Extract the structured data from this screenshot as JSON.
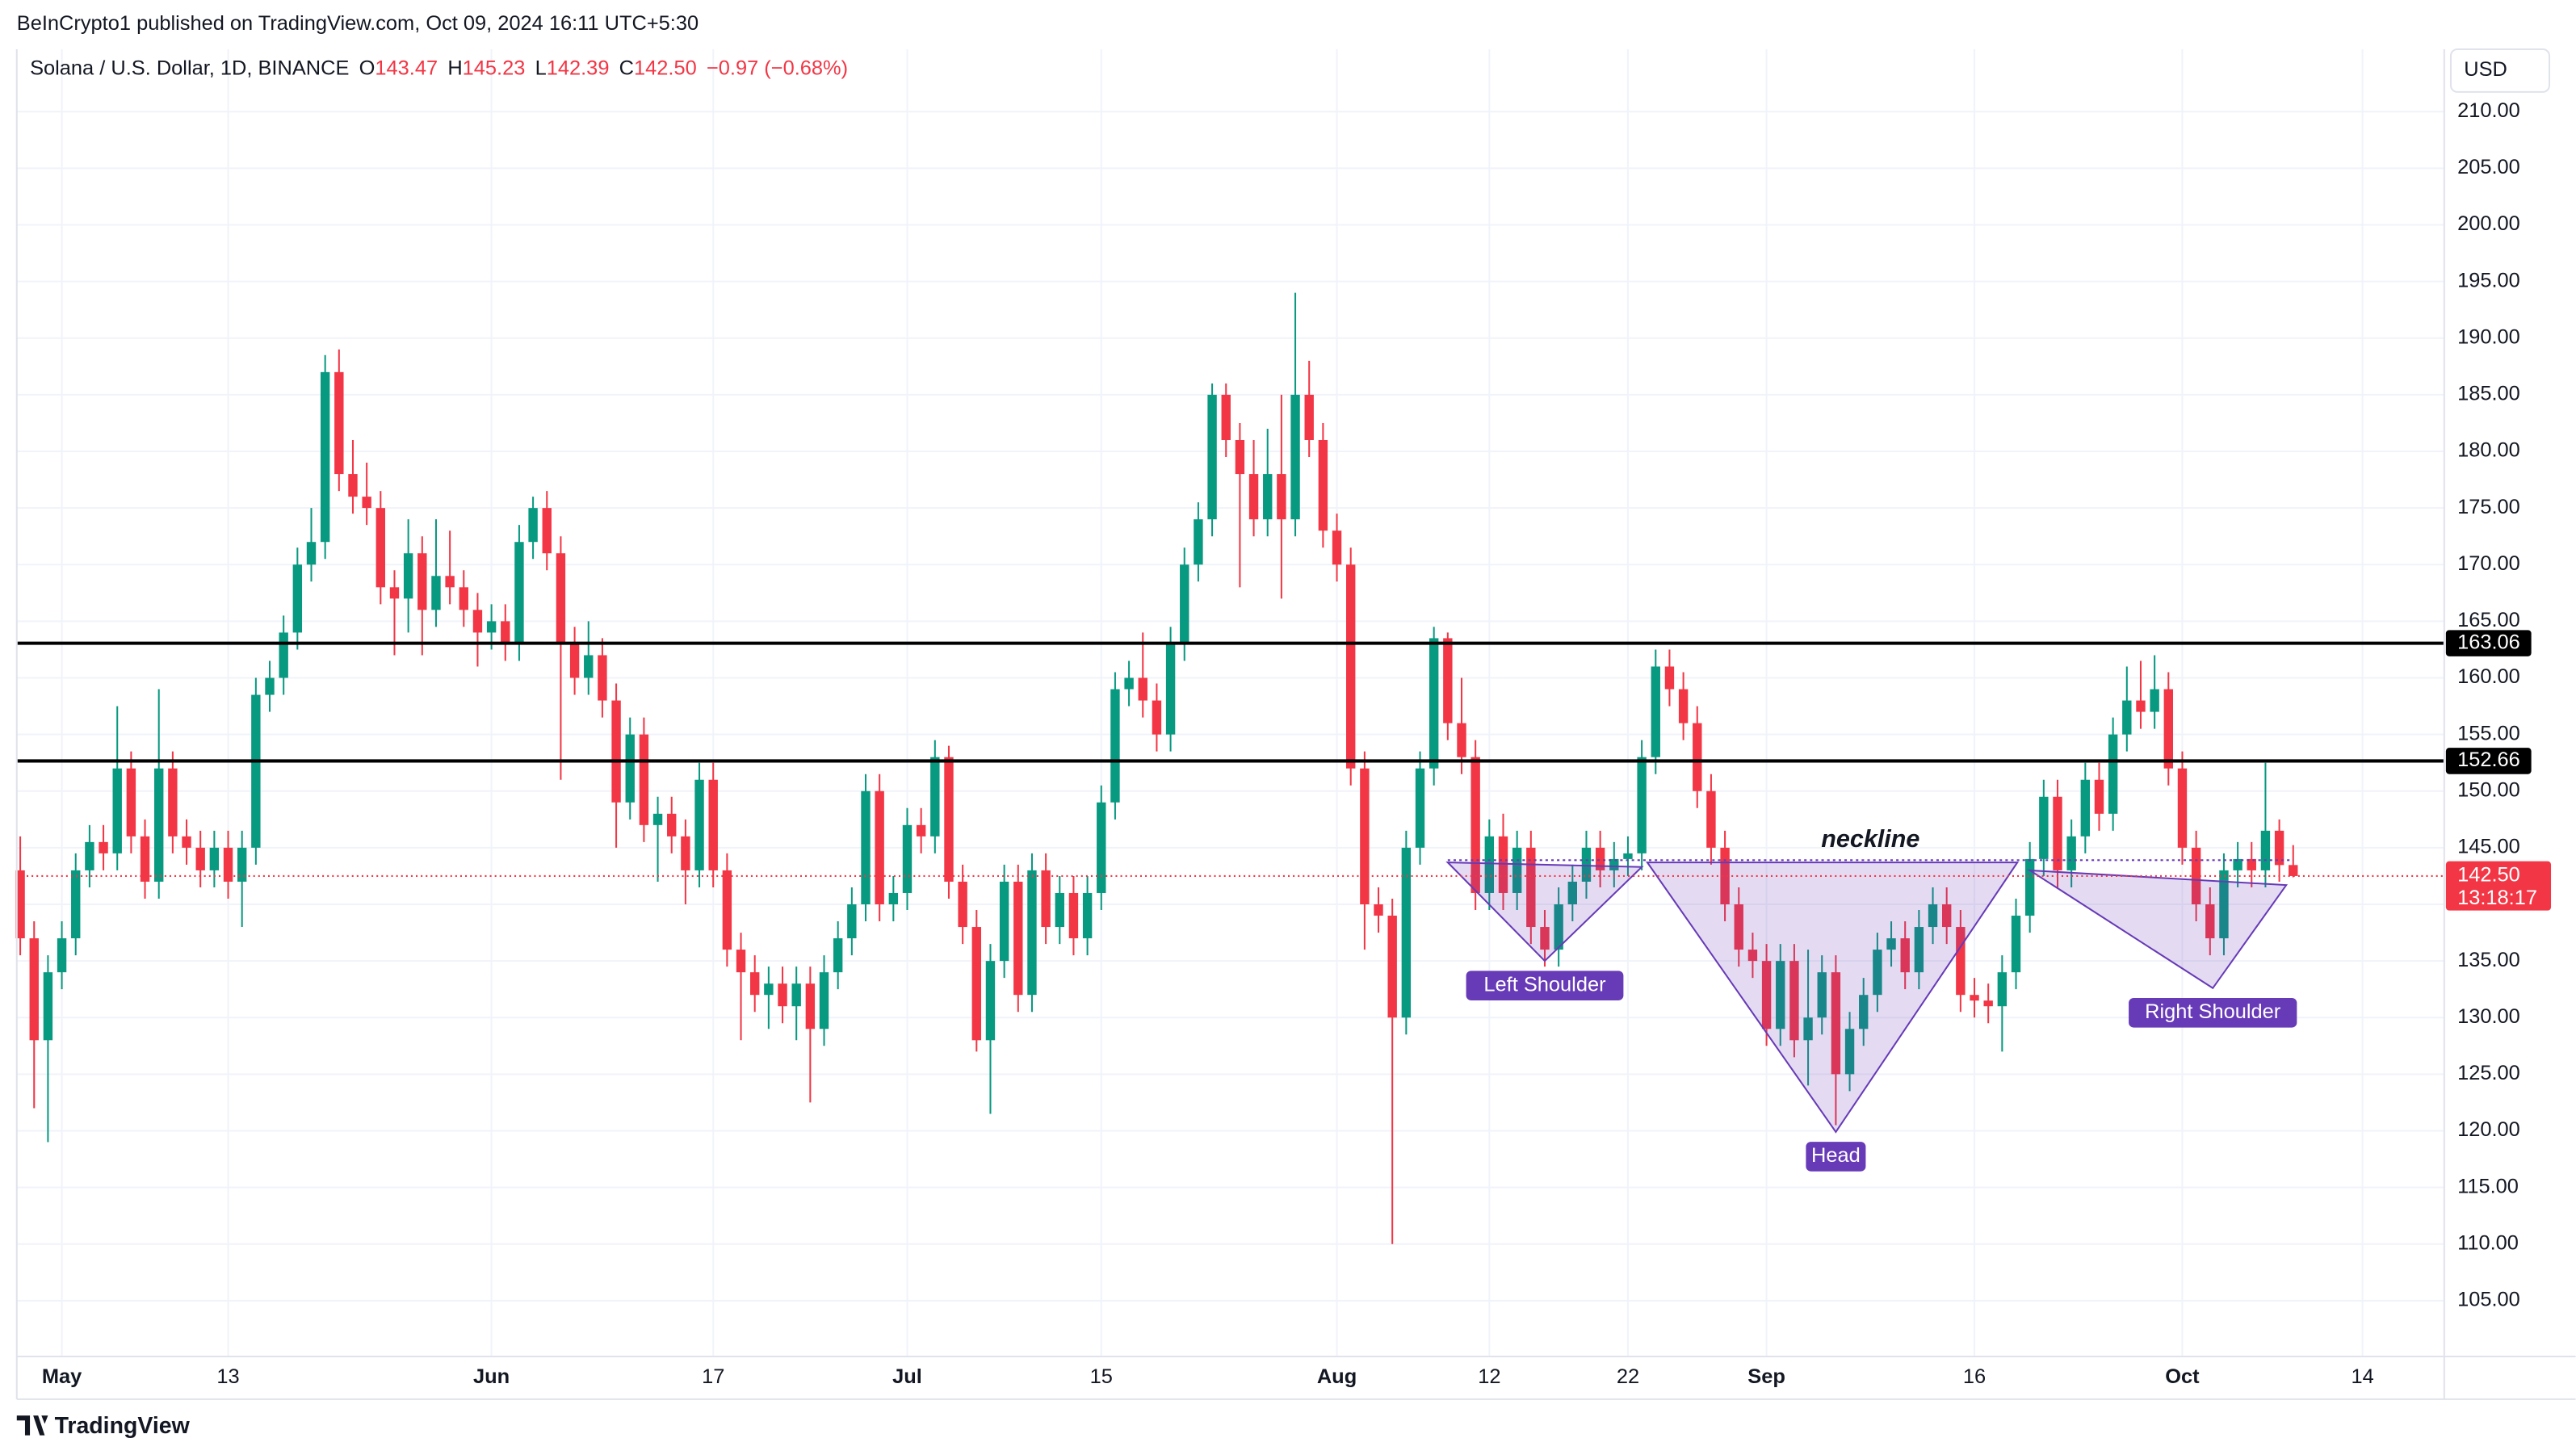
{
  "chart_data": {
    "type": "candlestick",
    "published": "BeInCrypto1 published on TradingView.com, Oct 09, 2024 16:11 UTC+5:30",
    "symbol": "Solana / U.S. Dollar, 1D, BINANCE",
    "ohlc_legend": [
      {
        "key": "O",
        "value": "143.47"
      },
      {
        "key": "H",
        "value": "145.23"
      },
      {
        "key": "L",
        "value": "142.39"
      },
      {
        "key": "C",
        "value": "142.50"
      }
    ],
    "change": "−0.97 (−0.68%)",
    "currency": "USD",
    "brand": "TradingView",
    "up_color": "#089981",
    "down_color": "#f23645",
    "open": [
      143,
      137,
      128,
      134,
      137,
      143,
      145.5,
      144.5,
      152,
      146,
      142,
      152,
      146,
      145,
      143,
      145,
      142,
      145,
      158.5,
      160,
      164,
      170,
      172,
      187,
      178,
      176,
      175,
      168,
      167,
      171,
      166,
      169,
      168,
      166,
      164,
      165,
      163,
      172,
      175,
      171,
      163,
      160,
      162,
      158,
      149,
      155,
      147,
      148,
      146,
      143,
      151,
      143,
      136,
      134,
      132,
      133,
      131,
      133,
      129,
      134,
      137,
      140,
      150,
      140,
      141,
      147,
      146,
      153,
      142,
      138,
      128,
      135,
      142,
      132,
      143,
      138,
      141,
      137,
      141,
      149,
      159,
      160,
      158,
      155,
      163,
      170,
      174,
      185,
      181,
      178,
      174,
      178,
      174,
      185,
      181,
      173,
      170,
      152,
      140,
      139,
      130,
      145,
      152,
      163.5,
      156,
      153,
      141,
      146,
      141,
      145,
      138,
      136,
      140,
      142,
      145,
      143,
      144,
      144.5,
      153,
      161,
      159,
      156,
      150,
      145,
      140,
      136,
      135,
      129,
      135,
      128,
      130,
      134,
      125,
      129,
      132,
      136,
      137,
      134,
      138,
      140,
      138,
      132,
      131.5,
      131,
      134,
      139,
      144,
      149.5,
      143,
      146,
      151,
      148,
      155,
      158,
      157,
      159,
      152,
      145,
      140,
      137,
      143,
      144,
      143,
      146.5,
      143.47
    ],
    "high": [
      146,
      138.5,
      135.5,
      138.5,
      144.5,
      147,
      147,
      157.5,
      153.5,
      147.5,
      159,
      153.5,
      147.5,
      146.5,
      146.5,
      146.5,
      146.5,
      160,
      161.5,
      165.5,
      171.5,
      175,
      188.5,
      189,
      181,
      179,
      176.5,
      169.5,
      174,
      172.5,
      174,
      173,
      169.5,
      167.5,
      166.5,
      166.5,
      173.5,
      176,
      176.5,
      172.5,
      164.5,
      165,
      163.5,
      159.5,
      156.5,
      156.5,
      149.5,
      149.5,
      147.5,
      152.5,
      152.5,
      144.5,
      137.5,
      135.5,
      134.5,
      134.5,
      134.5,
      134.5,
      135.5,
      138.5,
      141.5,
      151.5,
      151.5,
      142.5,
      148.5,
      148.5,
      154.5,
      154,
      143.5,
      139.5,
      136.5,
      143.5,
      143.5,
      144.5,
      144.5,
      142.5,
      142.5,
      142.5,
      150.5,
      160.5,
      161.5,
      164,
      159.5,
      164.5,
      171.5,
      175.5,
      186,
      186,
      182.5,
      181,
      182,
      185,
      194,
      188,
      182.5,
      174.5,
      171.5,
      153.5,
      141.5,
      140.5,
      146.5,
      153.5,
      164.5,
      164,
      160,
      154.5,
      147.5,
      148,
      146.5,
      146.5,
      139.5,
      141.5,
      143.5,
      146.5,
      146.5,
      145.5,
      146,
      154.5,
      162.5,
      162.5,
      160.5,
      157.5,
      151.5,
      146.5,
      141.5,
      137.5,
      136.5,
      136.5,
      136.5,
      136,
      135.5,
      135.5,
      130.5,
      133.5,
      137.5,
      138.5,
      138.5,
      139.5,
      141.5,
      141.5,
      139.5,
      133.5,
      133,
      135.5,
      140.5,
      145.5,
      151,
      151,
      147.5,
      152.5,
      152.5,
      156.5,
      161,
      161.5,
      162,
      160.5,
      153.5,
      146.5,
      141.5,
      144.5,
      145.5,
      145.5,
      152.5,
      147.5,
      145.23
    ],
    "low": [
      135.5,
      122,
      119,
      132.5,
      135.5,
      141.5,
      143,
      143,
      144.5,
      140.5,
      140.5,
      144.5,
      143.5,
      141.5,
      141.5,
      140.5,
      138,
      143.5,
      157,
      158.5,
      162.5,
      168.5,
      170.5,
      176.5,
      174.5,
      173.5,
      166.5,
      162,
      164,
      162,
      164.5,
      166.5,
      164.5,
      161,
      162.5,
      161.5,
      161.5,
      170.5,
      169.5,
      151,
      158.5,
      158.5,
      156.5,
      145,
      147.5,
      145.5,
      142,
      144.5,
      140,
      141.5,
      141.5,
      134.5,
      128,
      130.5,
      129,
      129.5,
      128,
      122.5,
      127.5,
      132.5,
      135.5,
      138.5,
      138.5,
      138.5,
      139.5,
      144.5,
      144.5,
      140.5,
      136.5,
      127,
      121.5,
      133.5,
      130.5,
      130.5,
      136.5,
      136.5,
      135.5,
      135.5,
      139.5,
      147.5,
      157.5,
      156.5,
      153.5,
      153.5,
      161.5,
      168.5,
      172.5,
      179.5,
      168,
      172.5,
      172.5,
      167,
      172.5,
      179.5,
      171.5,
      168.5,
      150.5,
      136,
      137.5,
      110,
      128.5,
      143.5,
      150.5,
      154.5,
      151.5,
      139.5,
      139.5,
      139.5,
      139.5,
      136.5,
      134.5,
      134.5,
      138.5,
      140.5,
      141.5,
      141.5,
      142.5,
      143,
      151.5,
      157.5,
      154.5,
      148.5,
      143.5,
      138.5,
      134.5,
      133.5,
      127.5,
      127.5,
      126.5,
      124,
      128.5,
      120.5,
      123.5,
      127.5,
      130.5,
      134.5,
      132.5,
      132.5,
      136.5,
      136.5,
      130.5,
      130,
      129.5,
      127,
      132.5,
      137.5,
      142.5,
      141.5,
      141.5,
      144.5,
      146.5,
      146.5,
      153.5,
      155.5,
      155.5,
      150.5,
      143.5,
      138.5,
      135.5,
      135.5,
      141.5,
      141.5,
      141.5,
      142,
      142.39
    ],
    "close": [
      137,
      128,
      134,
      137,
      143,
      145.5,
      144.5,
      152,
      146,
      142,
      152,
      146,
      145,
      143,
      145,
      142,
      145,
      158.5,
      160,
      164,
      170,
      172,
      187,
      178,
      176,
      175,
      168,
      167,
      171,
      166,
      169,
      168,
      166,
      164,
      165,
      163,
      172,
      175,
      171,
      163,
      160,
      162,
      158,
      149,
      155,
      147,
      148,
      146,
      143,
      151,
      143,
      136,
      134,
      132,
      133,
      131,
      133,
      129,
      134,
      137,
      140,
      150,
      140,
      141,
      147,
      146,
      153,
      142,
      138,
      128,
      135,
      142,
      132,
      143,
      138,
      141,
      137,
      141,
      149,
      159,
      160,
      158,
      155,
      163,
      170,
      174,
      185,
      181,
      178,
      174,
      178,
      174,
      185,
      181,
      173,
      170,
      152,
      140,
      139,
      130,
      145,
      152,
      163.5,
      156,
      153,
      141,
      146,
      141,
      145,
      138,
      136,
      140,
      142,
      145,
      143,
      144,
      144.5,
      153,
      161,
      159,
      156,
      150,
      145,
      140,
      136,
      135,
      129,
      135,
      128,
      130,
      134,
      125,
      129,
      132,
      136,
      137,
      134,
      138,
      140,
      138,
      132,
      131.5,
      131,
      134,
      139,
      144,
      149.5,
      143,
      146,
      151,
      148,
      155,
      158,
      157,
      159,
      152,
      145,
      140,
      137,
      143,
      144,
      143,
      146.5,
      143.47,
      142.5
    ],
    "xlim": [
      -0.25,
      174.9
    ],
    "xticks": [
      {
        "value": 3,
        "label": "May"
      },
      {
        "value": 15,
        "label": "13"
      },
      {
        "value": 34,
        "label": "Jun"
      },
      {
        "value": 50,
        "label": "17"
      },
      {
        "value": 64,
        "label": "Jul"
      },
      {
        "value": 78,
        "label": "15"
      },
      {
        "value": 95,
        "label": "Aug"
      },
      {
        "value": 106,
        "label": "12"
      },
      {
        "value": 116,
        "label": "22"
      },
      {
        "value": 126,
        "label": "Sep"
      },
      {
        "value": 141,
        "label": "16"
      },
      {
        "value": 156,
        "label": "Oct"
      },
      {
        "value": 169,
        "label": "14"
      }
    ],
    "ylim": [
      100,
      212
    ],
    "yticks": [
      {
        "value": 105,
        "label": "105.00"
      },
      {
        "value": 110,
        "label": "110.00"
      },
      {
        "value": 115,
        "label": "115.00"
      },
      {
        "value": 120,
        "label": "120.00"
      },
      {
        "value": 125,
        "label": "125.00"
      },
      {
        "value": 130,
        "label": "130.00"
      },
      {
        "value": 135,
        "label": "135.00"
      },
      {
        "value": 140,
        "label": "140.00"
      },
      {
        "value": 145,
        "label": "145.00"
      },
      {
        "value": 150,
        "label": "150.00"
      },
      {
        "value": 155,
        "label": "155.00"
      },
      {
        "value": 160,
        "label": "160.00"
      },
      {
        "value": 165,
        "label": "165.00"
      },
      {
        "value": 170,
        "label": "170.00"
      },
      {
        "value": 175,
        "label": "175.00"
      },
      {
        "value": 180,
        "label": "180.00"
      },
      {
        "value": 185,
        "label": "185.00"
      },
      {
        "value": 190,
        "label": "190.00"
      },
      {
        "value": 195,
        "label": "195.00"
      },
      {
        "value": 200,
        "label": "200.00"
      },
      {
        "value": 205,
        "label": "205.00"
      },
      {
        "value": 210,
        "label": "210.00"
      }
    ],
    "grid": true,
    "hlines": [
      163.06,
      152.66
    ],
    "hline_color": "#000000",
    "last_price": {
      "value": 142.5,
      "label": "142.50",
      "countdown": "13:18:17"
    },
    "pattern_color": "#673ab7",
    "neckline": {
      "label": "neckline",
      "value": 143.9,
      "from": 103,
      "to": 164
    },
    "patterns": [
      {
        "label": "Left Shoulder",
        "points": [
          [
            103,
            143.7
          ],
          [
            110,
            135
          ],
          [
            117,
            143.3
          ]
        ]
      },
      {
        "label": "Head",
        "points": [
          [
            117.4,
            143.7
          ],
          [
            131,
            119.9
          ],
          [
            144.1,
            143.7
          ]
        ]
      },
      {
        "label": "Right Shoulder",
        "points": [
          [
            145,
            143
          ],
          [
            158.2,
            132.6
          ],
          [
            163.5,
            141.7
          ]
        ]
      }
    ]
  }
}
